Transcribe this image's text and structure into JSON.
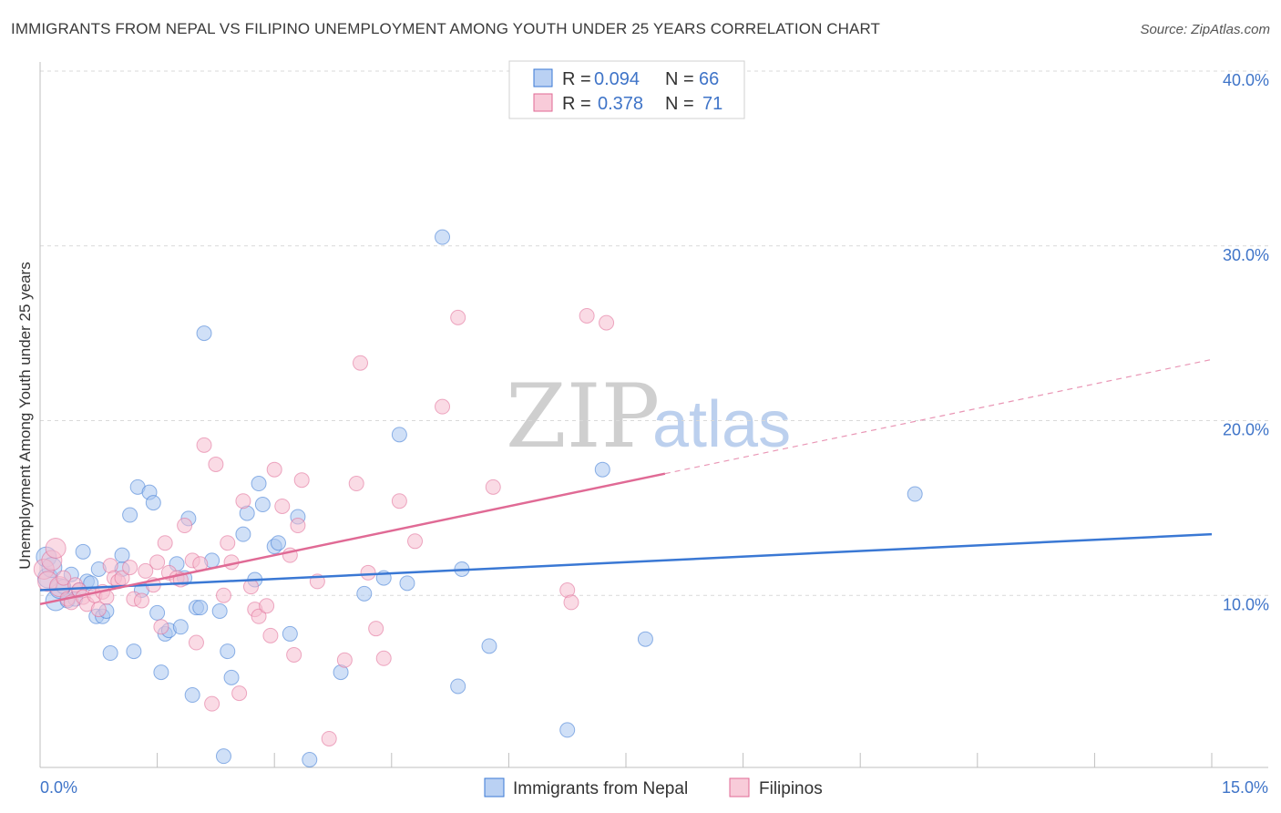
{
  "title": "IMMIGRANTS FROM NEPAL VS FILIPINO UNEMPLOYMENT AMONG YOUTH UNDER 25 YEARS CORRELATION CHART",
  "source": "Source: ZipAtlas.com",
  "watermark": {
    "zip": "ZIP",
    "atlas": "atlas"
  },
  "colors": {
    "nepal": "#3a78d4",
    "nepal_fill": "#a9c6f0",
    "filipino": "#e06a95",
    "filipino_fill": "#f6bed0",
    "tick_label": "#3f74c8",
    "grid": "#d9d9d9"
  },
  "legend": {
    "r_label": "R =",
    "n_label": "N =",
    "series": [
      {
        "name": "nepal",
        "r": "0.094",
        "n": "66"
      },
      {
        "name": "filipino",
        "r": "0.378",
        "n": "71"
      }
    ]
  },
  "bottom_legend": [
    "Immigrants from Nepal",
    "Filipinos"
  ],
  "chart_data": {
    "type": "scatter",
    "title": "IMMIGRANTS FROM NEPAL VS FILIPINO UNEMPLOYMENT AMONG YOUTH UNDER 25 YEARS CORRELATION CHART",
    "xlabel": "",
    "ylabel": "Unemployment Among Youth under 25 years",
    "xlim": [
      0,
      15
    ],
    "ylim": [
      0,
      40
    ],
    "x_tick_labels": [
      "0.0%",
      "15.0%"
    ],
    "y_ticks": [
      10,
      20,
      30,
      40
    ],
    "y_tick_labels": [
      "10.0%",
      "20.0%",
      "30.0%",
      "40.0%"
    ],
    "grid": true,
    "series": [
      {
        "name": "Immigrants from Nepal",
        "color": "#3a78d4",
        "trend": {
          "x0": 0,
          "y0": 10.3,
          "x1": 15,
          "y1": 13.5,
          "solid_until": 15
        },
        "points": [
          [
            0.08,
            12.2
          ],
          [
            0.1,
            11.0
          ],
          [
            0.15,
            11.6
          ],
          [
            0.2,
            9.7
          ],
          [
            0.25,
            10.4
          ],
          [
            0.3,
            10.5
          ],
          [
            0.35,
            9.7
          ],
          [
            0.4,
            11.2
          ],
          [
            0.45,
            9.8
          ],
          [
            0.5,
            10.3
          ],
          [
            0.55,
            12.5
          ],
          [
            0.6,
            10.8
          ],
          [
            0.65,
            10.7
          ],
          [
            0.72,
            8.8
          ],
          [
            0.75,
            11.5
          ],
          [
            0.8,
            8.8
          ],
          [
            0.85,
            9.1
          ],
          [
            0.9,
            6.7
          ],
          [
            1.05,
            11.5
          ],
          [
            1.05,
            12.3
          ],
          [
            1.15,
            14.6
          ],
          [
            1.2,
            6.8
          ],
          [
            1.25,
            16.2
          ],
          [
            1.3,
            10.3
          ],
          [
            1.4,
            15.9
          ],
          [
            1.45,
            15.3
          ],
          [
            1.5,
            9.0
          ],
          [
            1.55,
            5.6
          ],
          [
            1.6,
            7.8
          ],
          [
            1.65,
            8.0
          ],
          [
            1.75,
            11.8
          ],
          [
            1.8,
            8.2
          ],
          [
            1.85,
            11.0
          ],
          [
            1.9,
            14.4
          ],
          [
            1.95,
            4.3
          ],
          [
            2.0,
            9.3
          ],
          [
            2.05,
            9.3
          ],
          [
            2.1,
            25.0
          ],
          [
            2.2,
            12.0
          ],
          [
            2.3,
            9.1
          ],
          [
            2.35,
            0.8
          ],
          [
            2.4,
            6.8
          ],
          [
            2.45,
            5.3
          ],
          [
            2.6,
            13.5
          ],
          [
            2.65,
            14.7
          ],
          [
            2.75,
            10.9
          ],
          [
            2.8,
            16.4
          ],
          [
            2.85,
            15.2
          ],
          [
            3.0,
            12.8
          ],
          [
            3.05,
            13.0
          ],
          [
            3.2,
            7.8
          ],
          [
            3.3,
            14.5
          ],
          [
            3.45,
            0.6
          ],
          [
            3.85,
            5.6
          ],
          [
            4.15,
            10.1
          ],
          [
            4.4,
            11.0
          ],
          [
            4.6,
            19.2
          ],
          [
            4.7,
            10.7
          ],
          [
            5.15,
            30.5
          ],
          [
            5.35,
            4.8
          ],
          [
            5.4,
            11.5
          ],
          [
            5.75,
            7.1
          ],
          [
            6.75,
            2.3
          ],
          [
            7.2,
            17.2
          ],
          [
            7.75,
            7.5
          ],
          [
            11.2,
            15.8
          ]
        ]
      },
      {
        "name": "Filipinos",
        "color": "#e06a95",
        "trend": {
          "x0": 0,
          "y0": 9.5,
          "x1": 15,
          "y1": 23.5,
          "solid_until": 8.0
        },
        "points": [
          [
            0.05,
            11.5
          ],
          [
            0.1,
            10.8
          ],
          [
            0.15,
            12.0
          ],
          [
            0.2,
            12.7
          ],
          [
            0.25,
            10.5
          ],
          [
            0.3,
            11.0
          ],
          [
            0.35,
            9.8
          ],
          [
            0.4,
            9.6
          ],
          [
            0.45,
            10.6
          ],
          [
            0.5,
            10.3
          ],
          [
            0.55,
            9.9
          ],
          [
            0.6,
            9.5
          ],
          [
            0.7,
            10.0
          ],
          [
            0.75,
            9.2
          ],
          [
            0.8,
            10.2
          ],
          [
            0.85,
            9.9
          ],
          [
            0.9,
            11.7
          ],
          [
            0.95,
            11.0
          ],
          [
            1.0,
            10.8
          ],
          [
            1.05,
            11.0
          ],
          [
            1.15,
            11.6
          ],
          [
            1.2,
            9.8
          ],
          [
            1.3,
            9.7
          ],
          [
            1.35,
            11.4
          ],
          [
            1.45,
            10.6
          ],
          [
            1.5,
            11.9
          ],
          [
            1.55,
            8.2
          ],
          [
            1.6,
            13.0
          ],
          [
            1.65,
            11.3
          ],
          [
            1.75,
            11.0
          ],
          [
            1.8,
            10.9
          ],
          [
            1.85,
            14.0
          ],
          [
            1.95,
            12.0
          ],
          [
            2.0,
            7.3
          ],
          [
            2.05,
            11.8
          ],
          [
            2.1,
            18.6
          ],
          [
            2.2,
            3.8
          ],
          [
            2.25,
            17.5
          ],
          [
            2.35,
            10.0
          ],
          [
            2.4,
            13.0
          ],
          [
            2.45,
            11.9
          ],
          [
            2.55,
            4.4
          ],
          [
            2.6,
            15.4
          ],
          [
            2.7,
            10.5
          ],
          [
            2.75,
            9.2
          ],
          [
            2.8,
            8.8
          ],
          [
            2.9,
            9.4
          ],
          [
            2.95,
            7.7
          ],
          [
            3.0,
            17.2
          ],
          [
            3.1,
            15.1
          ],
          [
            3.2,
            12.3
          ],
          [
            3.25,
            6.6
          ],
          [
            3.3,
            14.0
          ],
          [
            3.35,
            16.6
          ],
          [
            3.55,
            10.8
          ],
          [
            3.7,
            1.8
          ],
          [
            3.9,
            6.3
          ],
          [
            4.05,
            16.4
          ],
          [
            4.1,
            23.3
          ],
          [
            4.2,
            11.3
          ],
          [
            4.3,
            8.1
          ],
          [
            4.4,
            6.4
          ],
          [
            4.6,
            15.4
          ],
          [
            4.8,
            13.1
          ],
          [
            5.15,
            20.8
          ],
          [
            5.35,
            25.9
          ],
          [
            5.8,
            16.2
          ],
          [
            6.75,
            10.3
          ],
          [
            6.8,
            9.6
          ],
          [
            7.0,
            26.0
          ],
          [
            7.25,
            25.6
          ]
        ]
      }
    ]
  }
}
